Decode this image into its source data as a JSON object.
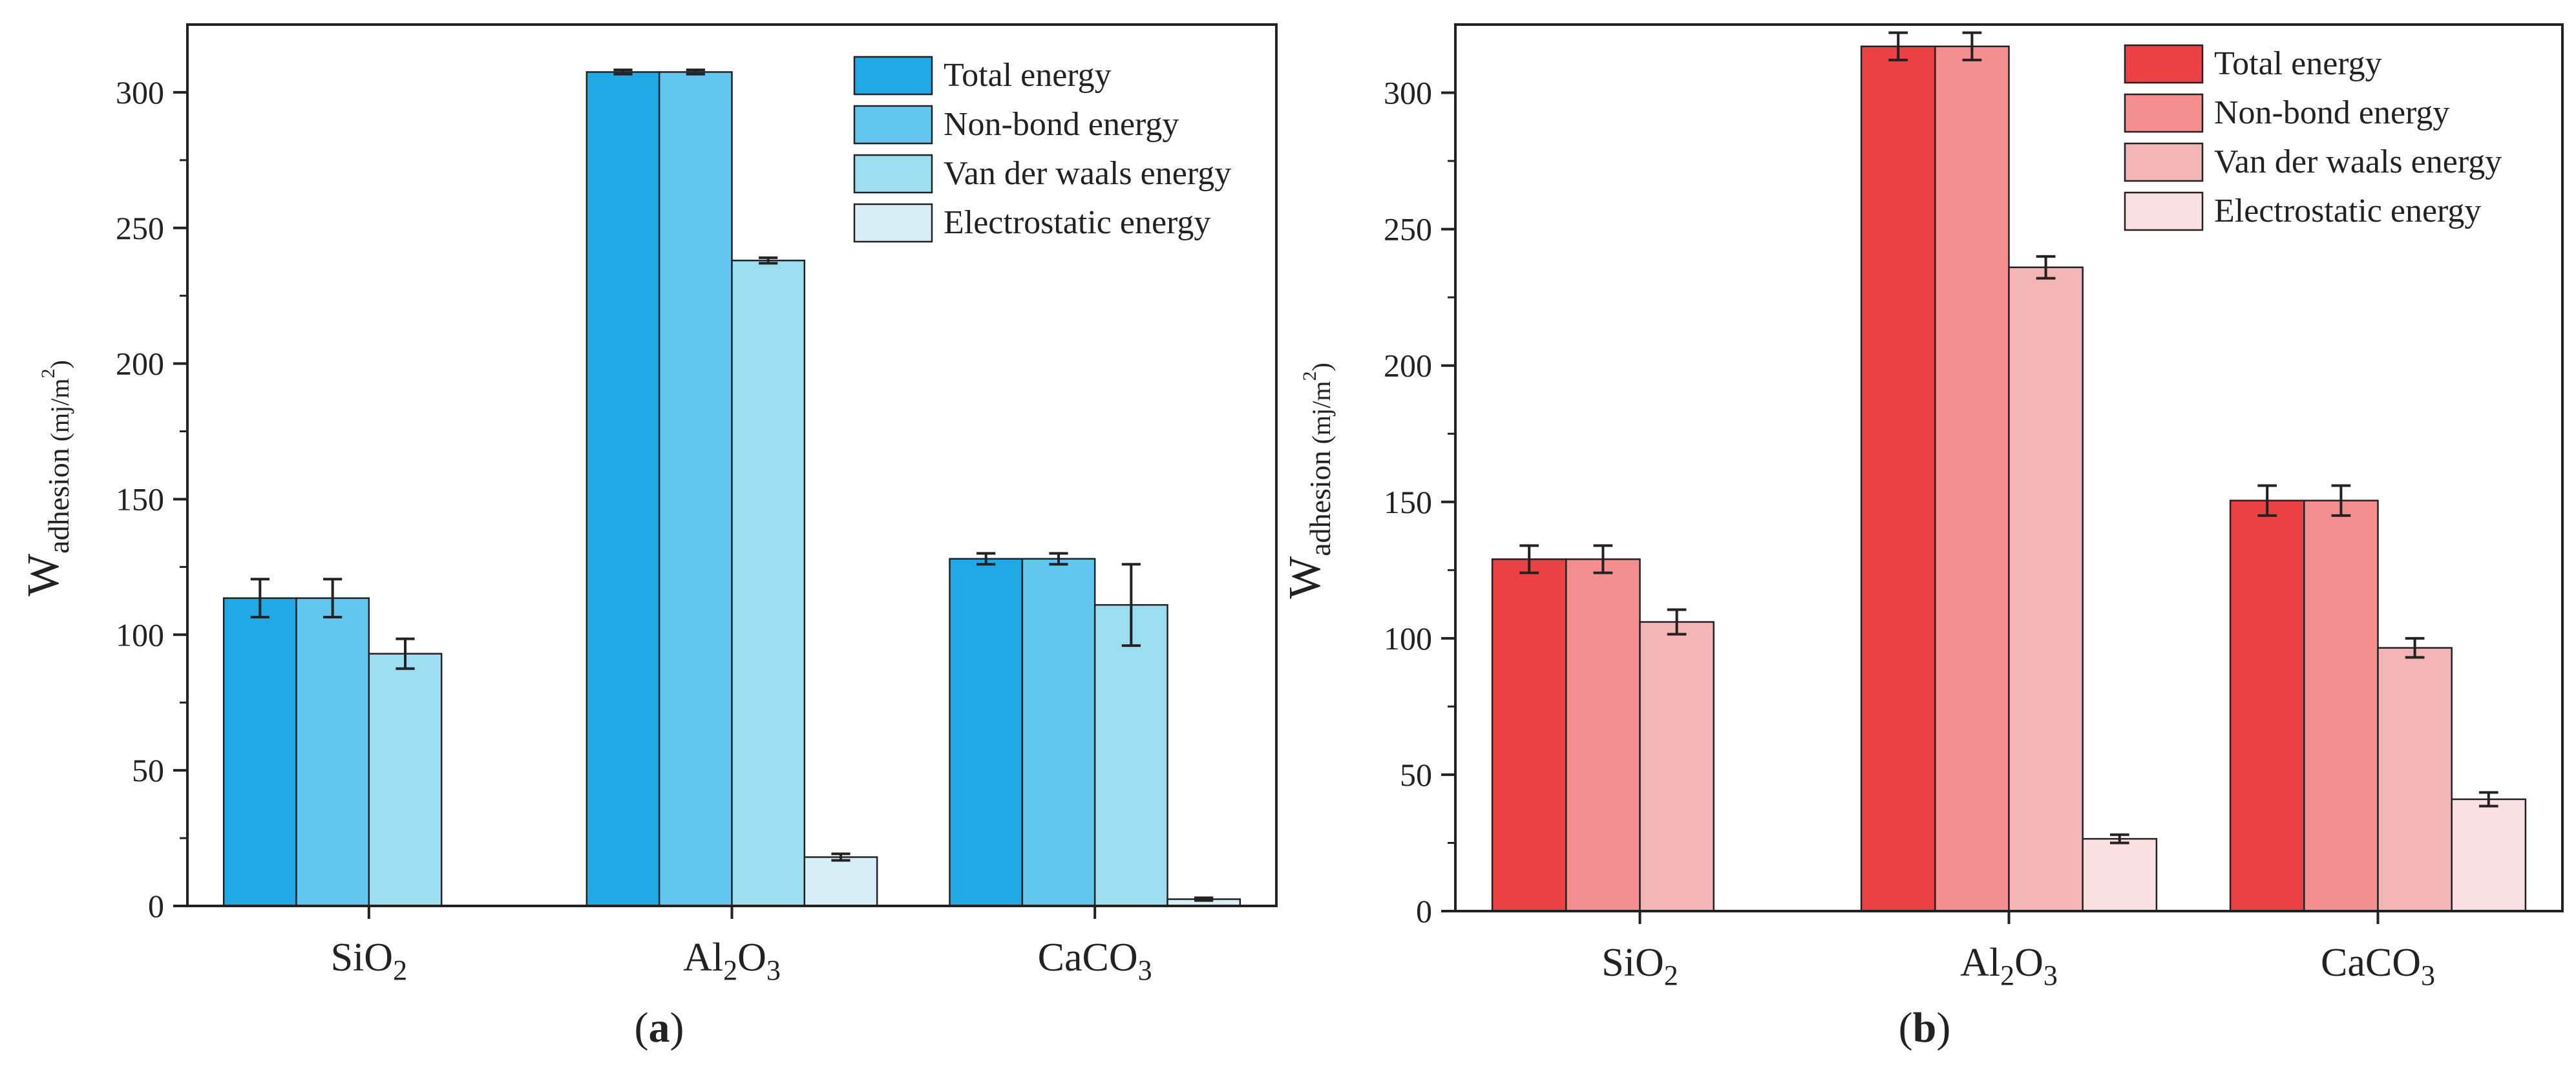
{
  "chart_data": [
    {
      "type": "bar",
      "panel": "a",
      "categories": [
        "SiO2",
        "Al2O3",
        "CaCO3"
      ],
      "category_labels": [
        {
          "base": "SiO",
          "sub": "2",
          "tail": ""
        },
        {
          "base": "Al",
          "sub": "2",
          "mid": "O",
          "sub2": "3"
        },
        {
          "base": "CaCO",
          "sub": "3",
          "tail": ""
        }
      ],
      "ylabel": {
        "main": "W",
        "sub": "adhesion",
        "unit": "(mj/m",
        "sup": "2",
        "close": ")"
      },
      "ylim": [
        0,
        325
      ],
      "yticks": [
        0,
        50,
        100,
        150,
        200,
        250,
        300
      ],
      "series": [
        {
          "name": "Total energy",
          "color": "#21a9e6",
          "values": [
            113.5,
            307.5,
            128.0
          ],
          "errors": [
            7,
            0.8,
            2
          ]
        },
        {
          "name": "Non-bond energy",
          "color": "#63c6ee",
          "values": [
            113.5,
            307.5,
            128.0
          ],
          "errors": [
            7,
            0.8,
            2
          ]
        },
        {
          "name": "Van der waals energy",
          "color": "#9dddf0",
          "values": [
            93.0,
            238.0,
            111.0
          ],
          "errors": [
            5.5,
            1,
            15
          ]
        },
        {
          "name": "Electrostatic energy",
          "color": "#d6eff7",
          "values": [
            0,
            18.0,
            2.5
          ],
          "errors": [
            0,
            1.2,
            0.5
          ]
        }
      ],
      "panel_label": {
        "open": "(",
        "letter": "a",
        "close": ")"
      }
    },
    {
      "type": "bar",
      "panel": "b",
      "categories": [
        "SiO2",
        "Al2O3",
        "CaCO3"
      ],
      "category_labels": [
        {
          "base": "SiO",
          "sub": "2",
          "tail": ""
        },
        {
          "base": "Al",
          "sub": "2",
          "mid": "O",
          "sub2": "3"
        },
        {
          "base": "CaCO",
          "sub": "3",
          "tail": ""
        }
      ],
      "ylabel": {
        "main": "W",
        "sub": "adhesion",
        "unit": "(mj/m",
        "sup": "2",
        "close": ")"
      },
      "ylim": [
        0,
        325
      ],
      "yticks": [
        0,
        50,
        100,
        150,
        200,
        250,
        300
      ],
      "series": [
        {
          "name": "Total energy",
          "color": "#ec4144",
          "values": [
            129.0,
            317.0,
            150.5
          ],
          "errors": [
            5,
            5,
            5.5
          ]
        },
        {
          "name": "Non-bond energy",
          "color": "#f58e8f",
          "values": [
            129.0,
            317.0,
            150.5
          ],
          "errors": [
            5,
            5,
            5.5
          ]
        },
        {
          "name": "Van der waals energy",
          "color": "#f4b5b6",
          "values": [
            106.0,
            236.0,
            96.5
          ],
          "errors": [
            4.5,
            4,
            3.5
          ]
        },
        {
          "name": "Electrostatic energy",
          "color": "#fbe0e1",
          "values": [
            0,
            26.5,
            41.0
          ],
          "errors": [
            0,
            1.5,
            2.5
          ]
        }
      ],
      "panel_label": {
        "open": "(",
        "letter": "b",
        "close": ")"
      }
    }
  ]
}
